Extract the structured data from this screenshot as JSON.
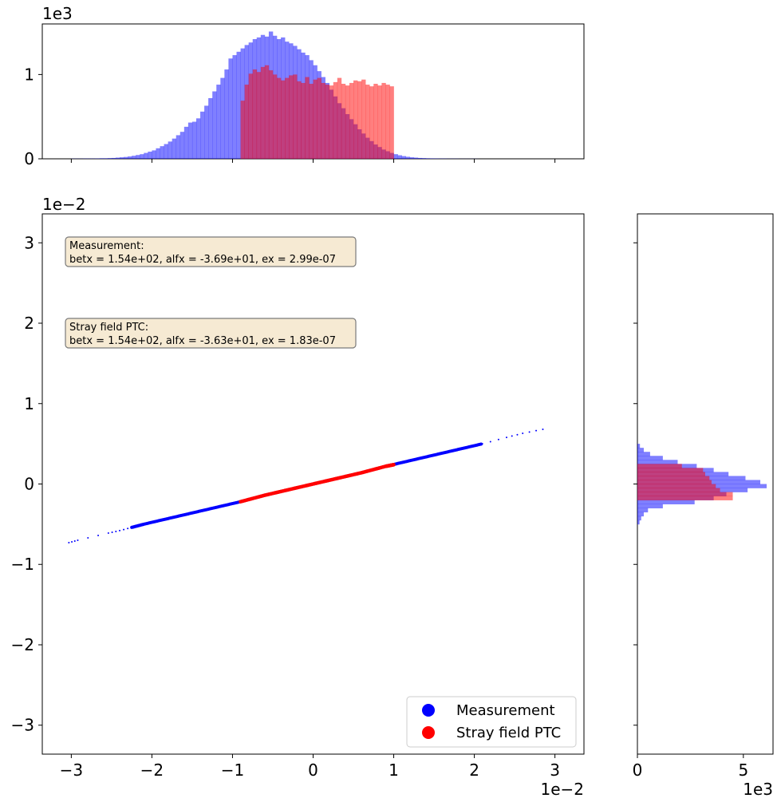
{
  "colors": {
    "measurement": "#0000ff",
    "stray": "#ff0000",
    "box_fill": "#f6ead3",
    "box_edge": "#7a7a7a"
  },
  "chart_data": {
    "type": "scatter",
    "layout": "scatter with marginal histograms",
    "x_ticks": [
      "−3",
      "−2",
      "−1",
      "0",
      "1",
      "2",
      "3"
    ],
    "x_offset": "1e−2",
    "y_ticks": [
      "3",
      "2",
      "1",
      "0",
      "−1",
      "−2",
      "−3"
    ],
    "y_offset": "1e−2",
    "xlim": [
      -0.0336,
      0.0336
    ],
    "ylim": [
      -0.0336,
      0.0336
    ],
    "grid": false,
    "legend_position": "lower-right",
    "series": [
      {
        "name": "Measurement",
        "color": "#0000ff",
        "points": [
          [
            -0.0303,
            -0.0073
          ],
          [
            -0.0292,
            -0.007
          ],
          [
            -0.0254,
            -0.0061
          ],
          [
            -0.024,
            -0.0058
          ],
          [
            -0.0225,
            -0.0054
          ],
          [
            -0.021,
            -0.005
          ],
          [
            -0.018,
            -0.0043
          ],
          [
            -0.015,
            -0.0036
          ],
          [
            -0.012,
            -0.0029
          ],
          [
            -0.009,
            -0.0022
          ],
          [
            -0.006,
            -0.0014
          ],
          [
            -0.003,
            -0.0007
          ],
          [
            0.0,
            0.0
          ],
          [
            0.003,
            0.0007
          ],
          [
            0.006,
            0.0014
          ],
          [
            0.009,
            0.0022
          ],
          [
            0.012,
            0.0029
          ],
          [
            0.015,
            0.0036
          ],
          [
            0.018,
            0.0043
          ],
          [
            0.021,
            0.005
          ],
          [
            0.024,
            0.0058
          ],
          [
            0.026,
            0.0063
          ],
          [
            0.0285,
            0.0068
          ]
        ]
      },
      {
        "name": "Stray field PTC",
        "color": "#ff0000",
        "points": [
          [
            -0.009,
            -0.0022
          ],
          [
            -0.006,
            -0.0014
          ],
          [
            -0.003,
            -0.0007
          ],
          [
            0.0,
            0.0
          ],
          [
            0.003,
            0.0007
          ],
          [
            0.006,
            0.0014
          ],
          [
            0.009,
            0.0022
          ],
          [
            0.01,
            0.0024
          ]
        ]
      }
    ],
    "annotations": [
      {
        "title": "Measurement:",
        "text": "betx = 1.54e+02, alfx = -3.69e+01, ex = 2.99e-07"
      },
      {
        "title": "Stray field PTC:",
        "text": "betx = 1.54e+02, alfx = -3.63e+01, ex = 1.83e-07"
      }
    ],
    "top_histogram": {
      "y_ticks": [
        "0",
        "1"
      ],
      "y_offset": "1e3",
      "ylim": [
        0,
        1600
      ],
      "x_range": [
        -0.03,
        0.03
      ],
      "bin_width": 0.0005,
      "measurement_counts": [
        2,
        2,
        2,
        3,
        3,
        3,
        4,
        6,
        6,
        8,
        10,
        14,
        18,
        22,
        28,
        36,
        45,
        55,
        70,
        85,
        100,
        125,
        150,
        175,
        205,
        240,
        280,
        320,
        380,
        430,
        440,
        480,
        560,
        630,
        720,
        800,
        880,
        960,
        1060,
        1190,
        1230,
        1270,
        1310,
        1350,
        1380,
        1420,
        1440,
        1470,
        1450,
        1510,
        1460,
        1420,
        1440,
        1390,
        1370,
        1340,
        1300,
        1260,
        1230,
        1170,
        1110,
        1040,
        970,
        900,
        820,
        740,
        660,
        600,
        530,
        470,
        410,
        350,
        300,
        250,
        210,
        170,
        140,
        110,
        90,
        70,
        55,
        42,
        32,
        24,
        18,
        14,
        10,
        8,
        6,
        5,
        4,
        3,
        3,
        2,
        2,
        2,
        1,
        1,
        1,
        1,
        1,
        0
      ],
      "stray_range": [
        -0.009,
        0.01
      ],
      "stray_counts": [
        690,
        880,
        1010,
        1060,
        1030,
        1090,
        1110,
        1050,
        1000,
        960,
        930,
        960,
        990,
        1000,
        920,
        900,
        970,
        890,
        940,
        960,
        900,
        880,
        870,
        910,
        960,
        890,
        870,
        900,
        930,
        920,
        940,
        880,
        860,
        890,
        870,
        900,
        880,
        860
      ]
    },
    "right_histogram": {
      "x_ticks": [
        "0",
        "5"
      ],
      "x_offset": "1e3",
      "xlim": [
        0,
        6400
      ],
      "y_range": [
        -0.005,
        0.005
      ],
      "bin_width": 0.0005,
      "measurement_counts": [
        100,
        180,
        300,
        500,
        1200,
        2700,
        3600,
        4200,
        5200,
        6100,
        5800,
        5100,
        4300,
        3600,
        2800,
        1900,
        1200,
        600,
        300,
        120
      ],
      "stray_range": [
        -0.002,
        0.0025
      ],
      "stray_counts": [
        4500,
        4500,
        3900,
        3700,
        3500,
        3400,
        3200,
        3100,
        2100
      ]
    }
  }
}
